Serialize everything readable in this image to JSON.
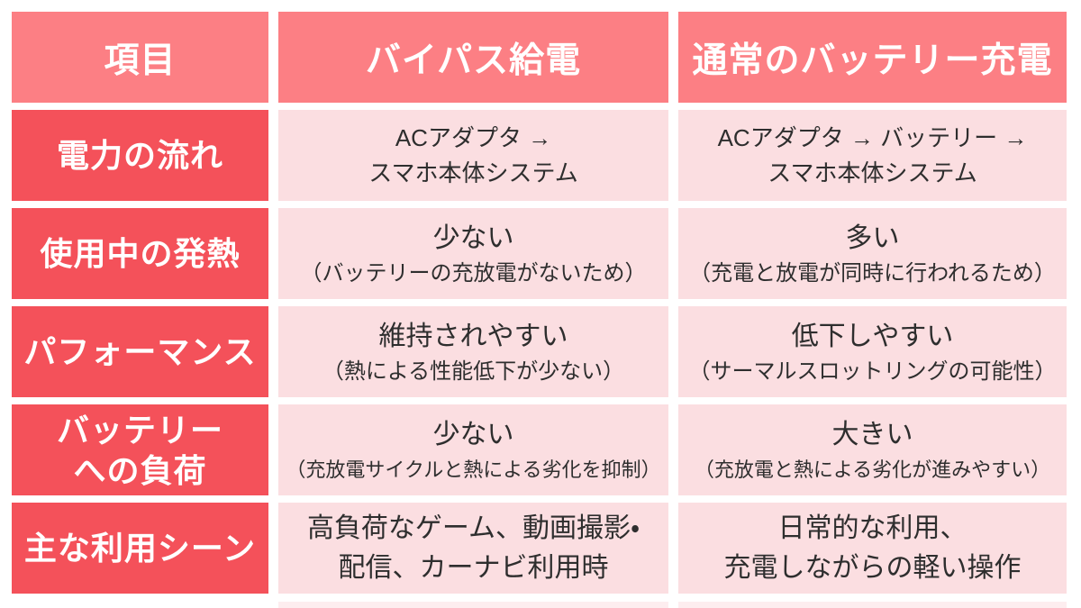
{
  "palette": {
    "page_bg": "#FFFFFF",
    "header_bg": "#FC7F84",
    "label_bg": "#F4515A",
    "cell_bg": "#FBDEE1",
    "header_text": "#FFFFFF",
    "body_text": "#2E2E2E"
  },
  "table": {
    "header": {
      "item": "項目",
      "bypass": "バイパス給電",
      "normal": "通常のバッテリー充電"
    },
    "rows": [
      {
        "label": "電力の流れ",
        "bypass": [
          "ACアダプタ →",
          "スマホ本体システム"
        ],
        "normal": [
          "ACアダプタ → バッテリー →",
          "スマホ本体システム"
        ]
      },
      {
        "label": "使用中の発熱",
        "bypass": [
          "少ない",
          "（バッテリーの充放電がないため）"
        ],
        "normal": [
          "多い",
          "（充電と放電が同時に行われるため）"
        ]
      },
      {
        "label": "パフォーマンス",
        "bypass": [
          "維持されやすい",
          "（熱による性能低下が少ない）"
        ],
        "normal": [
          "低下しやすい",
          "（サーマルスロットリングの可能性）"
        ]
      },
      {
        "label": "バッテリー\nへの負荷",
        "bypass": [
          "少ない",
          "（充放電サイクルと熱による劣化を抑制）"
        ],
        "normal": [
          "大きい",
          "（充放電と熱による劣化が進みやすい）"
        ]
      },
      {
        "label": "主な利用シーン",
        "bypass": [
          "高負荷なゲーム、動画撮影・",
          "配信、カーナビ利用時"
        ],
        "normal": [
          "日常的な利用、",
          "充電しながらの軽い操作"
        ]
      }
    ]
  },
  "chart_data": {
    "type": "table",
    "columns": [
      "項目",
      "バイパス給電",
      "通常のバッテリー充電"
    ],
    "rows": [
      [
        "電力の流れ",
        "ACアダプタ → スマホ本体システム",
        "ACアダプタ → バッテリー → スマホ本体システム"
      ],
      [
        "使用中の発熱",
        "少ない（バッテリーの充放電がないため）",
        "多い（充電と放電が同時に行われるため）"
      ],
      [
        "パフォーマンス",
        "維持されやすい（熱による性能低下が少ない）",
        "低下しやすい（サーマルスロットリングの可能性）"
      ],
      [
        "バッテリーへの負荷",
        "少ない（充放電サイクルと熱による劣化を抑制）",
        "大きい（充放電と熱による劣化が進みやすい）"
      ],
      [
        "主な利用シーン",
        "高負荷なゲーム、動画撮影・配信、カーナビ利用時",
        "日常的な利用、充電しながらの軽い操作"
      ]
    ],
    "legend_position": "none",
    "grid": false
  }
}
